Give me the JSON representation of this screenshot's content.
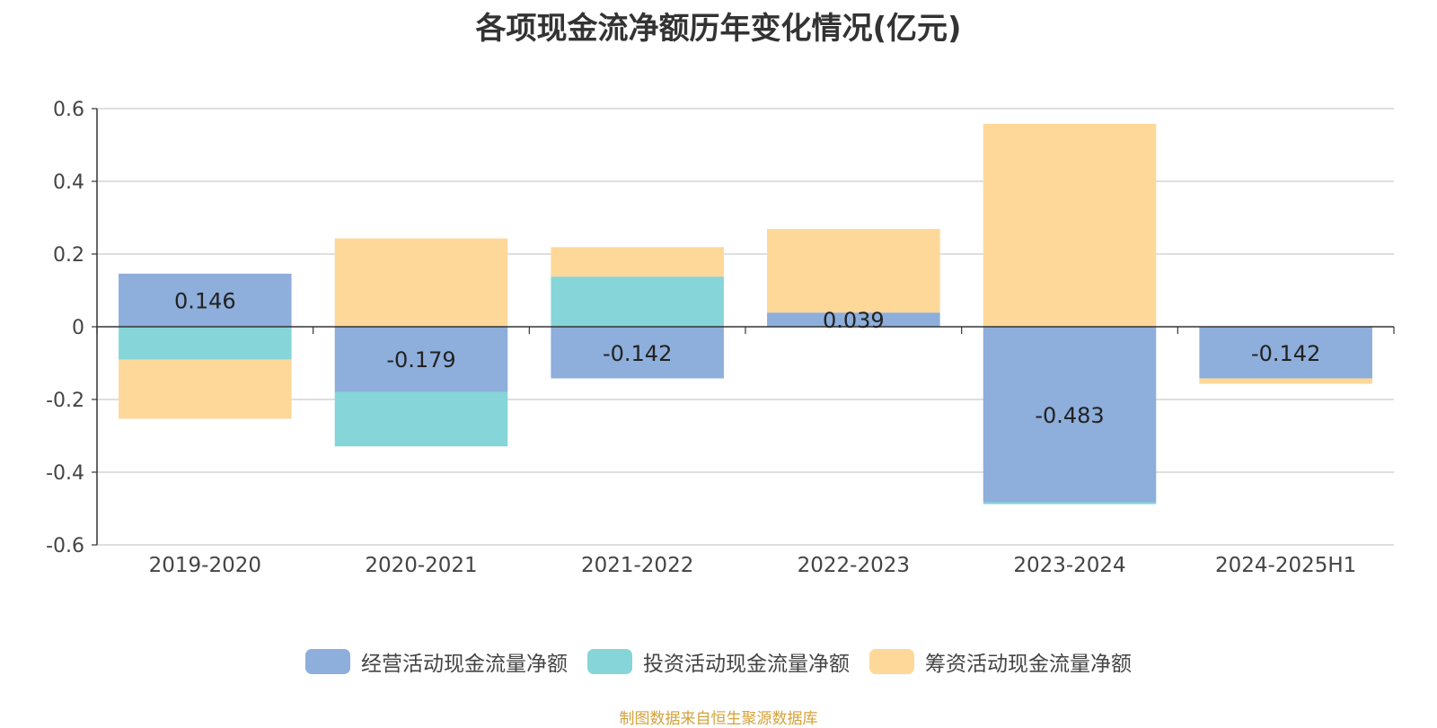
{
  "chart_data": {
    "type": "bar",
    "stacked": true,
    "title": "各项现金流净额历年变化情况(亿元)",
    "categories": [
      "2019-2020",
      "2020-2021",
      "2021-2022",
      "2022-2023",
      "2023-2024",
      "2024-2025H1"
    ],
    "ylim": [
      -0.6,
      0.6
    ],
    "yticks": [
      0.6,
      0.4,
      0.2,
      0,
      -0.2,
      -0.4,
      -0.6
    ],
    "ytick_labels": [
      "0.6",
      "0.4",
      "0.2",
      "0",
      "-0.2",
      "-0.4",
      "-0.6"
    ],
    "grid": true,
    "legend_position": "bottom",
    "series": [
      {
        "name": "经营活动现金流量净额",
        "color": "#8eaedb",
        "values": [
          0.146,
          -0.179,
          -0.142,
          0.039,
          -0.483,
          -0.142
        ],
        "labels": [
          "0.146",
          "-0.179",
          "-0.142",
          "0.039",
          "-0.483",
          "-0.142"
        ]
      },
      {
        "name": "投资活动现金流量净额",
        "color": "#86d5d8",
        "values": [
          -0.09,
          -0.15,
          0.138,
          0,
          -0.005,
          0
        ]
      },
      {
        "name": "筹资活动现金流量净额",
        "color": "#fed899",
        "values": [
          -0.163,
          0.243,
          0.081,
          0.23,
          0.558,
          -0.015
        ]
      }
    ]
  },
  "source_note": "制图数据来自恒生聚源数据库"
}
